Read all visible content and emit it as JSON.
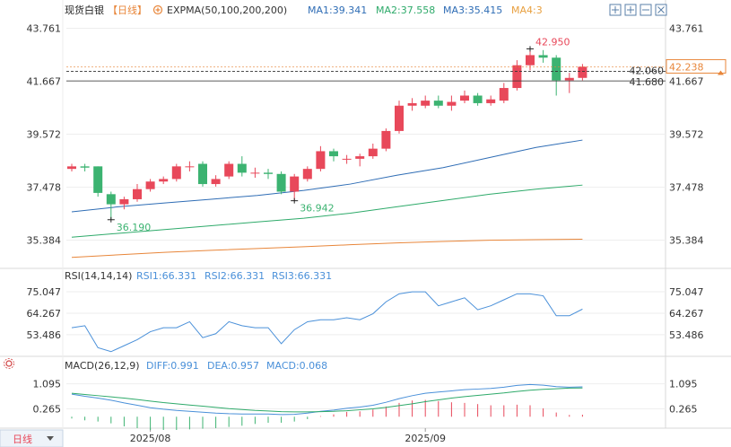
{
  "header": {
    "symbol": "现货白银",
    "period": "【日线】",
    "indicator": "EXPMA(50,100,200,200)",
    "ma1": "MA1:39.341",
    "ma2": "MA2:37.558",
    "ma3": "MA3:35.415",
    "ma4": "MA4:3"
  },
  "rsi_header": {
    "label": "RSI(14,14,14)",
    "rsi1": "RSI1:66.331",
    "rsi2": "RSI2:66.331",
    "rsi3": "RSI3:66.331"
  },
  "macd_header": {
    "label": "MACD(26,12,9)",
    "diff": "DIFF:0.991",
    "dea": "DEA:0.957",
    "macd": "MACD:0.068"
  },
  "footer": {
    "period_button": "日线",
    "x_ticks": [
      "2025/08",
      "2025/09"
    ]
  },
  "colors": {
    "up": "#e8485a",
    "down": "#3cb371",
    "ma1": "#2f6db5",
    "ma2": "#2eaa6a",
    "ma3": "#e8863a",
    "header_text": "#4a90d9",
    "ma4": "#e8a040"
  },
  "chart_data": {
    "type": "candlestick",
    "price_axis": {
      "ticks": [
        43.761,
        41.667,
        39.572,
        37.478,
        35.384
      ],
      "range": [
        34.3,
        44.1
      ]
    },
    "price_labels": {
      "last": "42.238",
      "line_upper": "42.060",
      "line_lower": "41.680",
      "high_marker": "42.950",
      "low_marker_1": "36.190",
      "low_marker_2": "36.942"
    },
    "candles": [
      {
        "o": 38.2,
        "c": 38.3,
        "h": 38.4,
        "l": 38.1
      },
      {
        "o": 38.3,
        "c": 38.25,
        "h": 38.4,
        "l": 38.1
      },
      {
        "o": 38.3,
        "c": 37.25,
        "h": 38.3,
        "l": 37.1
      },
      {
        "o": 37.2,
        "c": 36.8,
        "h": 37.3,
        "l": 36.19
      },
      {
        "o": 36.8,
        "c": 37.0,
        "h": 37.1,
        "l": 36.6
      },
      {
        "o": 37.0,
        "c": 37.4,
        "h": 37.6,
        "l": 36.9
      },
      {
        "o": 37.4,
        "c": 37.7,
        "h": 37.8,
        "l": 37.3
      },
      {
        "o": 37.7,
        "c": 37.8,
        "h": 37.9,
        "l": 37.6
      },
      {
        "o": 37.8,
        "c": 38.3,
        "h": 38.4,
        "l": 37.7
      },
      {
        "o": 38.3,
        "c": 38.3,
        "h": 38.5,
        "l": 38.1
      },
      {
        "o": 38.4,
        "c": 37.6,
        "h": 38.5,
        "l": 37.5
      },
      {
        "o": 37.6,
        "c": 37.8,
        "h": 37.95,
        "l": 37.5
      },
      {
        "o": 37.9,
        "c": 38.4,
        "h": 38.5,
        "l": 37.8
      },
      {
        "o": 38.4,
        "c": 38.05,
        "h": 38.7,
        "l": 37.9
      },
      {
        "o": 38.05,
        "c": 38.05,
        "h": 38.25,
        "l": 37.85
      },
      {
        "o": 38.05,
        "c": 38.0,
        "h": 38.2,
        "l": 37.8
      },
      {
        "o": 38.0,
        "c": 37.3,
        "h": 38.1,
        "l": 37.2
      },
      {
        "o": 37.3,
        "c": 37.9,
        "h": 38.0,
        "l": 36.94
      },
      {
        "o": 37.8,
        "c": 38.2,
        "h": 38.3,
        "l": 37.7
      },
      {
        "o": 38.2,
        "c": 38.9,
        "h": 39.1,
        "l": 38.1
      },
      {
        "o": 38.9,
        "c": 38.7,
        "h": 39.0,
        "l": 38.5
      },
      {
        "o": 38.6,
        "c": 38.6,
        "h": 38.75,
        "l": 38.4
      },
      {
        "o": 38.6,
        "c": 38.7,
        "h": 38.8,
        "l": 38.3
      },
      {
        "o": 38.7,
        "c": 39.0,
        "h": 39.2,
        "l": 38.6
      },
      {
        "o": 39.0,
        "c": 39.7,
        "h": 39.8,
        "l": 38.9
      },
      {
        "o": 39.7,
        "c": 40.7,
        "h": 40.9,
        "l": 39.6
      },
      {
        "o": 40.7,
        "c": 40.8,
        "h": 41.0,
        "l": 40.5
      },
      {
        "o": 40.7,
        "c": 40.9,
        "h": 41.1,
        "l": 40.6
      },
      {
        "o": 40.9,
        "c": 40.7,
        "h": 41.1,
        "l": 40.6
      },
      {
        "o": 40.7,
        "c": 40.85,
        "h": 41.1,
        "l": 40.5
      },
      {
        "o": 40.9,
        "c": 41.1,
        "h": 41.3,
        "l": 40.8
      },
      {
        "o": 41.1,
        "c": 40.8,
        "h": 41.2,
        "l": 40.7
      },
      {
        "o": 40.8,
        "c": 40.95,
        "h": 41.1,
        "l": 40.7
      },
      {
        "o": 40.9,
        "c": 41.4,
        "h": 41.6,
        "l": 40.8
      },
      {
        "o": 41.4,
        "c": 42.3,
        "h": 42.5,
        "l": 41.3
      },
      {
        "o": 42.3,
        "c": 42.7,
        "h": 42.95,
        "l": 42.1
      },
      {
        "o": 42.7,
        "c": 42.6,
        "h": 42.9,
        "l": 42.4
      },
      {
        "o": 42.6,
        "c": 41.7,
        "h": 42.7,
        "l": 41.1
      },
      {
        "o": 41.7,
        "c": 41.8,
        "h": 42.0,
        "l": 41.2
      },
      {
        "o": 41.8,
        "c": 42.24,
        "h": 42.35,
        "l": 41.7
      }
    ],
    "ma_lines": {
      "ma1": [
        36.5,
        36.7,
        36.85,
        37.0,
        37.15,
        37.35,
        37.6,
        37.95,
        38.25,
        38.65,
        39.05,
        39.34
      ],
      "ma2": [
        35.5,
        35.65,
        35.8,
        35.95,
        36.1,
        36.25,
        36.45,
        36.7,
        36.95,
        37.2,
        37.4,
        37.56
      ],
      "ma3": [
        34.7,
        34.8,
        34.9,
        34.98,
        35.05,
        35.12,
        35.2,
        35.27,
        35.33,
        35.38,
        35.4,
        35.42
      ]
    },
    "rsi_axis": {
      "ticks": [
        75.047,
        64.267,
        53.486
      ],
      "range": [
        44,
        80
      ]
    },
    "rsi": [
      57,
      58,
      47,
      45,
      48,
      51,
      55,
      57,
      57,
      60,
      52,
      54,
      60,
      58,
      57,
      57,
      49,
      56,
      60,
      61,
      61,
      62,
      61,
      64,
      70,
      74,
      75,
      75,
      68,
      70,
      72,
      66,
      68,
      71,
      74,
      74,
      73,
      63,
      63,
      66.33
    ],
    "macd_axis": {
      "ticks": [
        1.095,
        0.265
      ],
      "range": [
        -0.35,
        1.5
      ]
    },
    "macd": {
      "diff": [
        0.75,
        0.68,
        0.62,
        0.55,
        0.46,
        0.38,
        0.3,
        0.25,
        0.21,
        0.18,
        0.15,
        0.12,
        0.1,
        0.09,
        0.09,
        0.09,
        0.07,
        0.08,
        0.12,
        0.18,
        0.22,
        0.28,
        0.32,
        0.38,
        0.48,
        0.6,
        0.7,
        0.78,
        0.82,
        0.86,
        0.9,
        0.92,
        0.94,
        0.98,
        1.04,
        1.07,
        1.05,
        1.0,
        0.98,
        0.991
      ],
      "dea": [
        0.78,
        0.74,
        0.7,
        0.66,
        0.62,
        0.57,
        0.52,
        0.47,
        0.43,
        0.39,
        0.35,
        0.31,
        0.27,
        0.24,
        0.21,
        0.19,
        0.17,
        0.16,
        0.16,
        0.17,
        0.18,
        0.2,
        0.23,
        0.26,
        0.31,
        0.37,
        0.43,
        0.5,
        0.56,
        0.62,
        0.67,
        0.71,
        0.75,
        0.79,
        0.84,
        0.88,
        0.91,
        0.93,
        0.95,
        0.957
      ],
      "hist": [
        -0.06,
        -0.12,
        -0.16,
        -0.22,
        -0.32,
        -0.38,
        -0.44,
        -0.44,
        -0.44,
        -0.42,
        -0.4,
        -0.38,
        -0.34,
        -0.3,
        -0.24,
        -0.2,
        -0.2,
        -0.16,
        -0.08,
        0.02,
        0.08,
        0.16,
        0.18,
        0.24,
        0.34,
        0.46,
        0.54,
        0.56,
        0.52,
        0.48,
        0.46,
        0.42,
        0.38,
        0.38,
        0.4,
        0.38,
        0.28,
        0.14,
        0.06,
        0.068
      ]
    }
  }
}
